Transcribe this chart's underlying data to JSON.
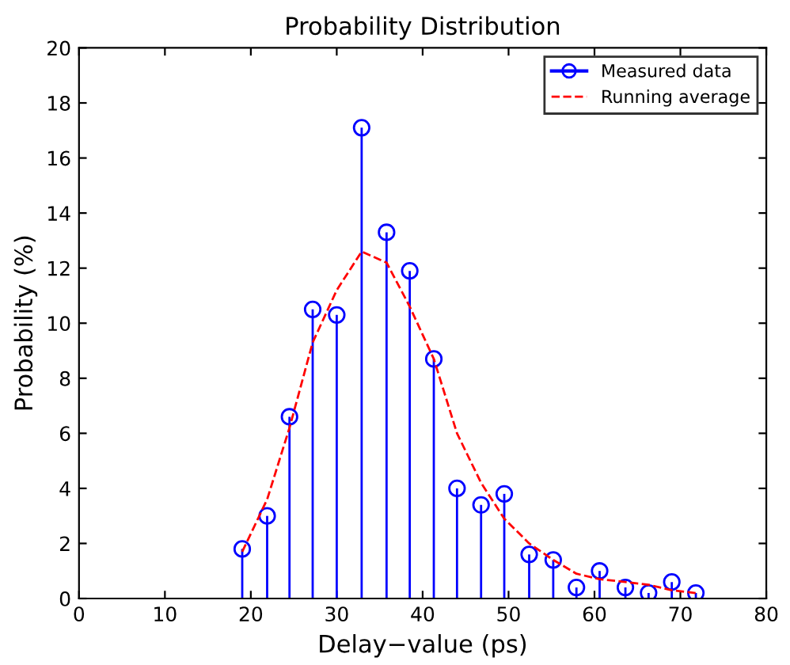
{
  "chart_data": {
    "type": "lollipop",
    "title": "Probability Distribution",
    "xlabel": "Delay−value (ps)",
    "ylabel": "Probability (%)",
    "xlim": [
      0,
      80
    ],
    "ylim": [
      0,
      20
    ],
    "xticks": [
      0,
      10,
      20,
      30,
      40,
      50,
      60,
      70,
      80
    ],
    "yticks": [
      0,
      2,
      4,
      6,
      8,
      10,
      12,
      14,
      16,
      18,
      20
    ],
    "grid": false,
    "legend": "top right",
    "series": [
      {
        "name": "Measured data",
        "color": "#0000ff",
        "marker": "circle",
        "x": [
          19.0,
          21.9,
          24.5,
          27.2,
          30.0,
          32.9,
          35.8,
          38.5,
          41.3,
          44.0,
          46.8,
          49.5,
          52.4,
          55.2,
          57.9,
          60.6,
          63.6,
          66.3,
          69.0,
          71.8
        ],
        "values": [
          1.8,
          3.0,
          6.6,
          10.5,
          10.3,
          17.1,
          13.3,
          11.9,
          8.7,
          4.0,
          3.4,
          3.8,
          1.6,
          1.4,
          0.4,
          1.0,
          0.4,
          0.2,
          0.6,
          0.2
        ]
      },
      {
        "name": "Running average",
        "type": "line",
        "color": "#ff0000",
        "marker": "none",
        "line_style": "dashed",
        "x": [
          19.0,
          21.9,
          24.5,
          27.2,
          30.0,
          32.9,
          35.8,
          38.5,
          41.3,
          44.0,
          46.8,
          49.5,
          52.4,
          55.2,
          57.9,
          60.6,
          63.6,
          66.3,
          69.0,
          71.8
        ],
        "values": [
          1.7,
          3.6,
          6.2,
          9.3,
          11.2,
          12.6,
          12.2,
          10.6,
          8.7,
          6.0,
          4.2,
          2.9,
          2.0,
          1.4,
          0.9,
          0.7,
          0.6,
          0.5,
          0.3,
          0.2
        ]
      }
    ]
  }
}
